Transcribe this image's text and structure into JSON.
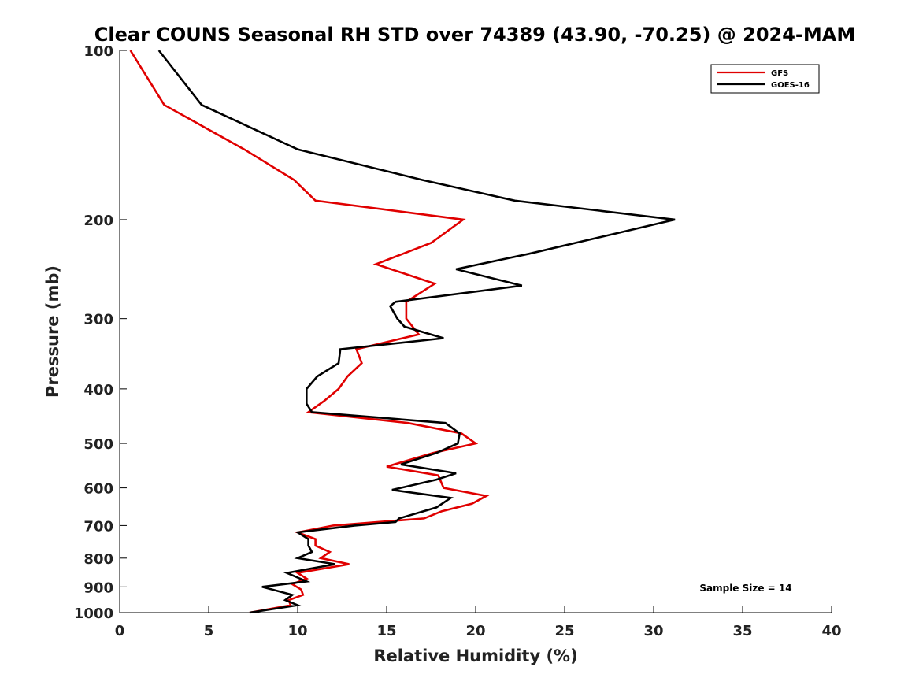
{
  "chart_data": {
    "type": "line",
    "title": "Clear COUNS Seasonal RH STD over 74389 (43.90, -70.25) @ 2024-MAM",
    "xlabel": "Relative Humidity (%)",
    "ylabel": "Pressure (mb)",
    "xlim": [
      0,
      40
    ],
    "ylim": [
      1000,
      100
    ],
    "yscale": "log",
    "xticks": [
      0,
      5,
      10,
      15,
      20,
      25,
      30,
      35,
      40
    ],
    "yticks": [
      100,
      200,
      300,
      400,
      500,
      600,
      700,
      800,
      900,
      1000
    ],
    "legend_position": "top-right",
    "annotation": "Sample Size = 14",
    "series": [
      {
        "name": "GFS",
        "color": "#e00000",
        "points": [
          {
            "p": 100,
            "rh": 0.6
          },
          {
            "p": 125,
            "rh": 2.5
          },
          {
            "p": 150,
            "rh": 7.0
          },
          {
            "p": 170,
            "rh": 9.8
          },
          {
            "p": 185,
            "rh": 11.0
          },
          {
            "p": 200,
            "rh": 19.3
          },
          {
            "p": 220,
            "rh": 17.5
          },
          {
            "p": 240,
            "rh": 14.4
          },
          {
            "p": 260,
            "rh": 17.7
          },
          {
            "p": 280,
            "rh": 16.1
          },
          {
            "p": 300,
            "rh": 16.1
          },
          {
            "p": 320,
            "rh": 16.8
          },
          {
            "p": 340,
            "rh": 13.3
          },
          {
            "p": 360,
            "rh": 13.6
          },
          {
            "p": 380,
            "rh": 12.8
          },
          {
            "p": 400,
            "rh": 12.3
          },
          {
            "p": 420,
            "rh": 11.5
          },
          {
            "p": 440,
            "rh": 10.6
          },
          {
            "p": 460,
            "rh": 16.2
          },
          {
            "p": 480,
            "rh": 19.2
          },
          {
            "p": 500,
            "rh": 20.0
          },
          {
            "p": 520,
            "rh": 17.6
          },
          {
            "p": 550,
            "rh": 15.0
          },
          {
            "p": 570,
            "rh": 17.9
          },
          {
            "p": 600,
            "rh": 18.2
          },
          {
            "p": 620,
            "rh": 20.6
          },
          {
            "p": 640,
            "rh": 19.8
          },
          {
            "p": 660,
            "rh": 18.1
          },
          {
            "p": 680,
            "rh": 17.1
          },
          {
            "p": 700,
            "rh": 12.0
          },
          {
            "p": 720,
            "rh": 10.0
          },
          {
            "p": 740,
            "rh": 11.0
          },
          {
            "p": 760,
            "rh": 11.0
          },
          {
            "p": 780,
            "rh": 11.8
          },
          {
            "p": 800,
            "rh": 11.3
          },
          {
            "p": 820,
            "rh": 12.9
          },
          {
            "p": 850,
            "rh": 10.0
          },
          {
            "p": 870,
            "rh": 10.5
          },
          {
            "p": 890,
            "rh": 9.7
          },
          {
            "p": 910,
            "rh": 10.2
          },
          {
            "p": 930,
            "rh": 10.3
          },
          {
            "p": 950,
            "rh": 9.5
          },
          {
            "p": 970,
            "rh": 9.6
          },
          {
            "p": 1000,
            "rh": 7.3
          }
        ]
      },
      {
        "name": "GOES-16",
        "color": "#000000",
        "points": [
          {
            "p": 100,
            "rh": 2.2
          },
          {
            "p": 125,
            "rh": 4.6
          },
          {
            "p": 150,
            "rh": 10.0
          },
          {
            "p": 170,
            "rh": 17.0
          },
          {
            "p": 185,
            "rh": 22.2
          },
          {
            "p": 200,
            "rh": 31.2
          },
          {
            "p": 230,
            "rh": 23.0
          },
          {
            "p": 245,
            "rh": 18.9
          },
          {
            "p": 262,
            "rh": 22.6
          },
          {
            "p": 280,
            "rh": 15.5
          },
          {
            "p": 285,
            "rh": 15.2
          },
          {
            "p": 300,
            "rh": 15.6
          },
          {
            "p": 310,
            "rh": 16.0
          },
          {
            "p": 325,
            "rh": 18.2
          },
          {
            "p": 340,
            "rh": 12.4
          },
          {
            "p": 360,
            "rh": 12.3
          },
          {
            "p": 380,
            "rh": 11.1
          },
          {
            "p": 400,
            "rh": 10.5
          },
          {
            "p": 425,
            "rh": 10.5
          },
          {
            "p": 440,
            "rh": 10.8
          },
          {
            "p": 460,
            "rh": 18.3
          },
          {
            "p": 480,
            "rh": 19.1
          },
          {
            "p": 500,
            "rh": 19.0
          },
          {
            "p": 520,
            "rh": 17.8
          },
          {
            "p": 545,
            "rh": 15.8
          },
          {
            "p": 565,
            "rh": 18.9
          },
          {
            "p": 580,
            "rh": 17.8
          },
          {
            "p": 605,
            "rh": 15.3
          },
          {
            "p": 625,
            "rh": 18.6
          },
          {
            "p": 650,
            "rh": 17.8
          },
          {
            "p": 680,
            "rh": 15.7
          },
          {
            "p": 690,
            "rh": 15.5
          },
          {
            "p": 700,
            "rh": 13.2
          },
          {
            "p": 720,
            "rh": 10.0
          },
          {
            "p": 740,
            "rh": 10.6
          },
          {
            "p": 760,
            "rh": 10.6
          },
          {
            "p": 780,
            "rh": 10.8
          },
          {
            "p": 800,
            "rh": 10.0
          },
          {
            "p": 820,
            "rh": 12.1
          },
          {
            "p": 850,
            "rh": 9.4
          },
          {
            "p": 880,
            "rh": 10.5
          },
          {
            "p": 900,
            "rh": 8.0
          },
          {
            "p": 930,
            "rh": 9.7
          },
          {
            "p": 950,
            "rh": 9.3
          },
          {
            "p": 970,
            "rh": 10.0
          },
          {
            "p": 1000,
            "rh": 7.3
          }
        ]
      }
    ]
  }
}
